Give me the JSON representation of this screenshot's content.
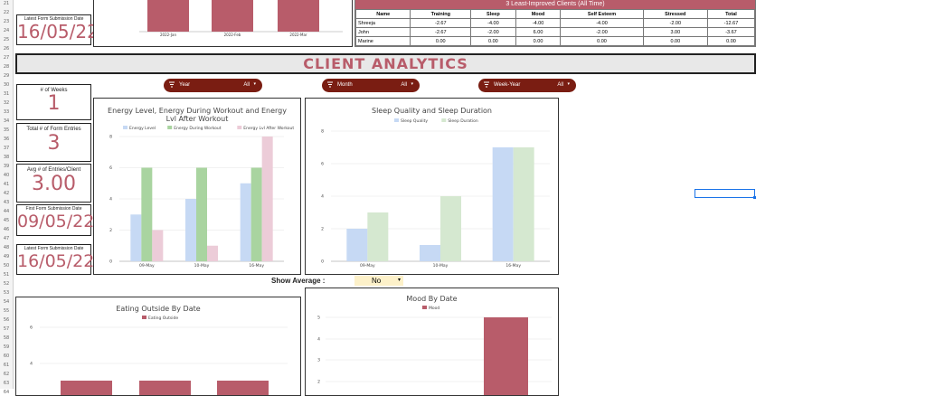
{
  "row_numbers": [
    "21",
    "22",
    "23",
    "24",
    "25",
    "26",
    "27",
    "28",
    "29",
    "30",
    "31",
    "32",
    "33",
    "34",
    "35",
    "36",
    "37",
    "38",
    "39",
    "40",
    "41",
    "42",
    "43",
    "44",
    "45",
    "46",
    "47",
    "48",
    "49",
    "50",
    "51",
    "52",
    "53",
    "54",
    "55",
    "56",
    "57",
    "58",
    "59",
    "60",
    "61",
    "62",
    "63",
    "64"
  ],
  "top_kpi": {
    "label": "Latest Form Submission Date",
    "value": "16/05/22"
  },
  "top_chart": {
    "categories": [
      "2022-Jan",
      "2022-Feb",
      "2022-Mar"
    ]
  },
  "least_improved": {
    "title": "3 Least-Improved Clients (All Time)",
    "headers": [
      "Name",
      "Training",
      "Sleep",
      "Mood",
      "Self Esteem",
      "Stressed",
      "Total"
    ],
    "rows": [
      [
        "Shreeja",
        "-2.67",
        "-4.00",
        "-4.00",
        "-4.00",
        "-2.00",
        "-12.67"
      ],
      [
        "John",
        "-2.67",
        "-2.00",
        "6.00",
        "-2.00",
        "3.00",
        "-3.67"
      ],
      [
        "Marine",
        "0.00",
        "0.00",
        "0.00",
        "0.00",
        "0.00",
        "0.00"
      ]
    ]
  },
  "section_title": "CLIENT ANALYTICS",
  "filters": [
    {
      "label": "Year",
      "value": "All"
    },
    {
      "label": "Month",
      "value": "All"
    },
    {
      "label": "Week-Year",
      "value": "All"
    }
  ],
  "kpis": [
    {
      "label": "# of Weeks",
      "value": "1"
    },
    {
      "label": "Total # of Form Entries",
      "value": "3"
    },
    {
      "label": "Avg # of Entries/Client",
      "value": "3.00"
    },
    {
      "label": "First Form Submission Date",
      "value": "09/05/22"
    },
    {
      "label": "Latest Form Submission Date",
      "value": "16/05/22"
    }
  ],
  "show_average": {
    "label": "Show Average :",
    "value": "No"
  },
  "colors": {
    "accent": "#b85c6a",
    "filter_bg": "#7a1d12",
    "blue": "#c6d9f4",
    "green": "#a9d4a0",
    "pink": "#ecccd8",
    "green_light": "#d5e8d0"
  },
  "chart_data": [
    {
      "type": "bar",
      "title": "Energy Level, Energy During Workout and Energy Lvl After Workout",
      "categories": [
        "09-May",
        "10-May",
        "16-May"
      ],
      "ylim": [
        0,
        8
      ],
      "yticks": [
        0,
        2,
        4,
        6,
        8
      ],
      "series": [
        {
          "name": "Energy Level",
          "values": [
            3,
            4,
            5
          ],
          "color": "#c6d9f4"
        },
        {
          "name": "Energy During Workout",
          "values": [
            6,
            6,
            6
          ],
          "color": "#a9d4a0"
        },
        {
          "name": "Energy Lvl After Workout",
          "values": [
            2,
            1,
            8
          ],
          "color": "#ecccd8"
        }
      ],
      "legend": "top"
    },
    {
      "type": "bar",
      "title": "Sleep Quality and Sleep Duration",
      "categories": [
        "09-May",
        "10-May",
        "16-May"
      ],
      "ylim": [
        0,
        8
      ],
      "yticks": [
        0,
        2,
        4,
        6,
        8
      ],
      "series": [
        {
          "name": "Sleep Quality",
          "values": [
            2,
            1,
            7
          ],
          "color": "#c6d9f4"
        },
        {
          "name": "Sleep Duration",
          "values": [
            3,
            4,
            7
          ],
          "color": "#d5e8d0"
        }
      ],
      "legend": "top"
    },
    {
      "type": "bar",
      "title": "Eating Outside By Date",
      "yticks": [
        4,
        6
      ],
      "series": [
        {
          "name": "Eating Outside",
          "values": [],
          "color": "#b85c6a"
        }
      ],
      "legend": "top"
    },
    {
      "type": "bar",
      "title": "Mood By Date",
      "yticks": [
        1,
        2,
        3,
        4,
        5
      ],
      "series": [
        {
          "name": "Mood",
          "values": [
            5
          ],
          "color": "#b85c6a"
        }
      ],
      "legend": "top"
    }
  ]
}
